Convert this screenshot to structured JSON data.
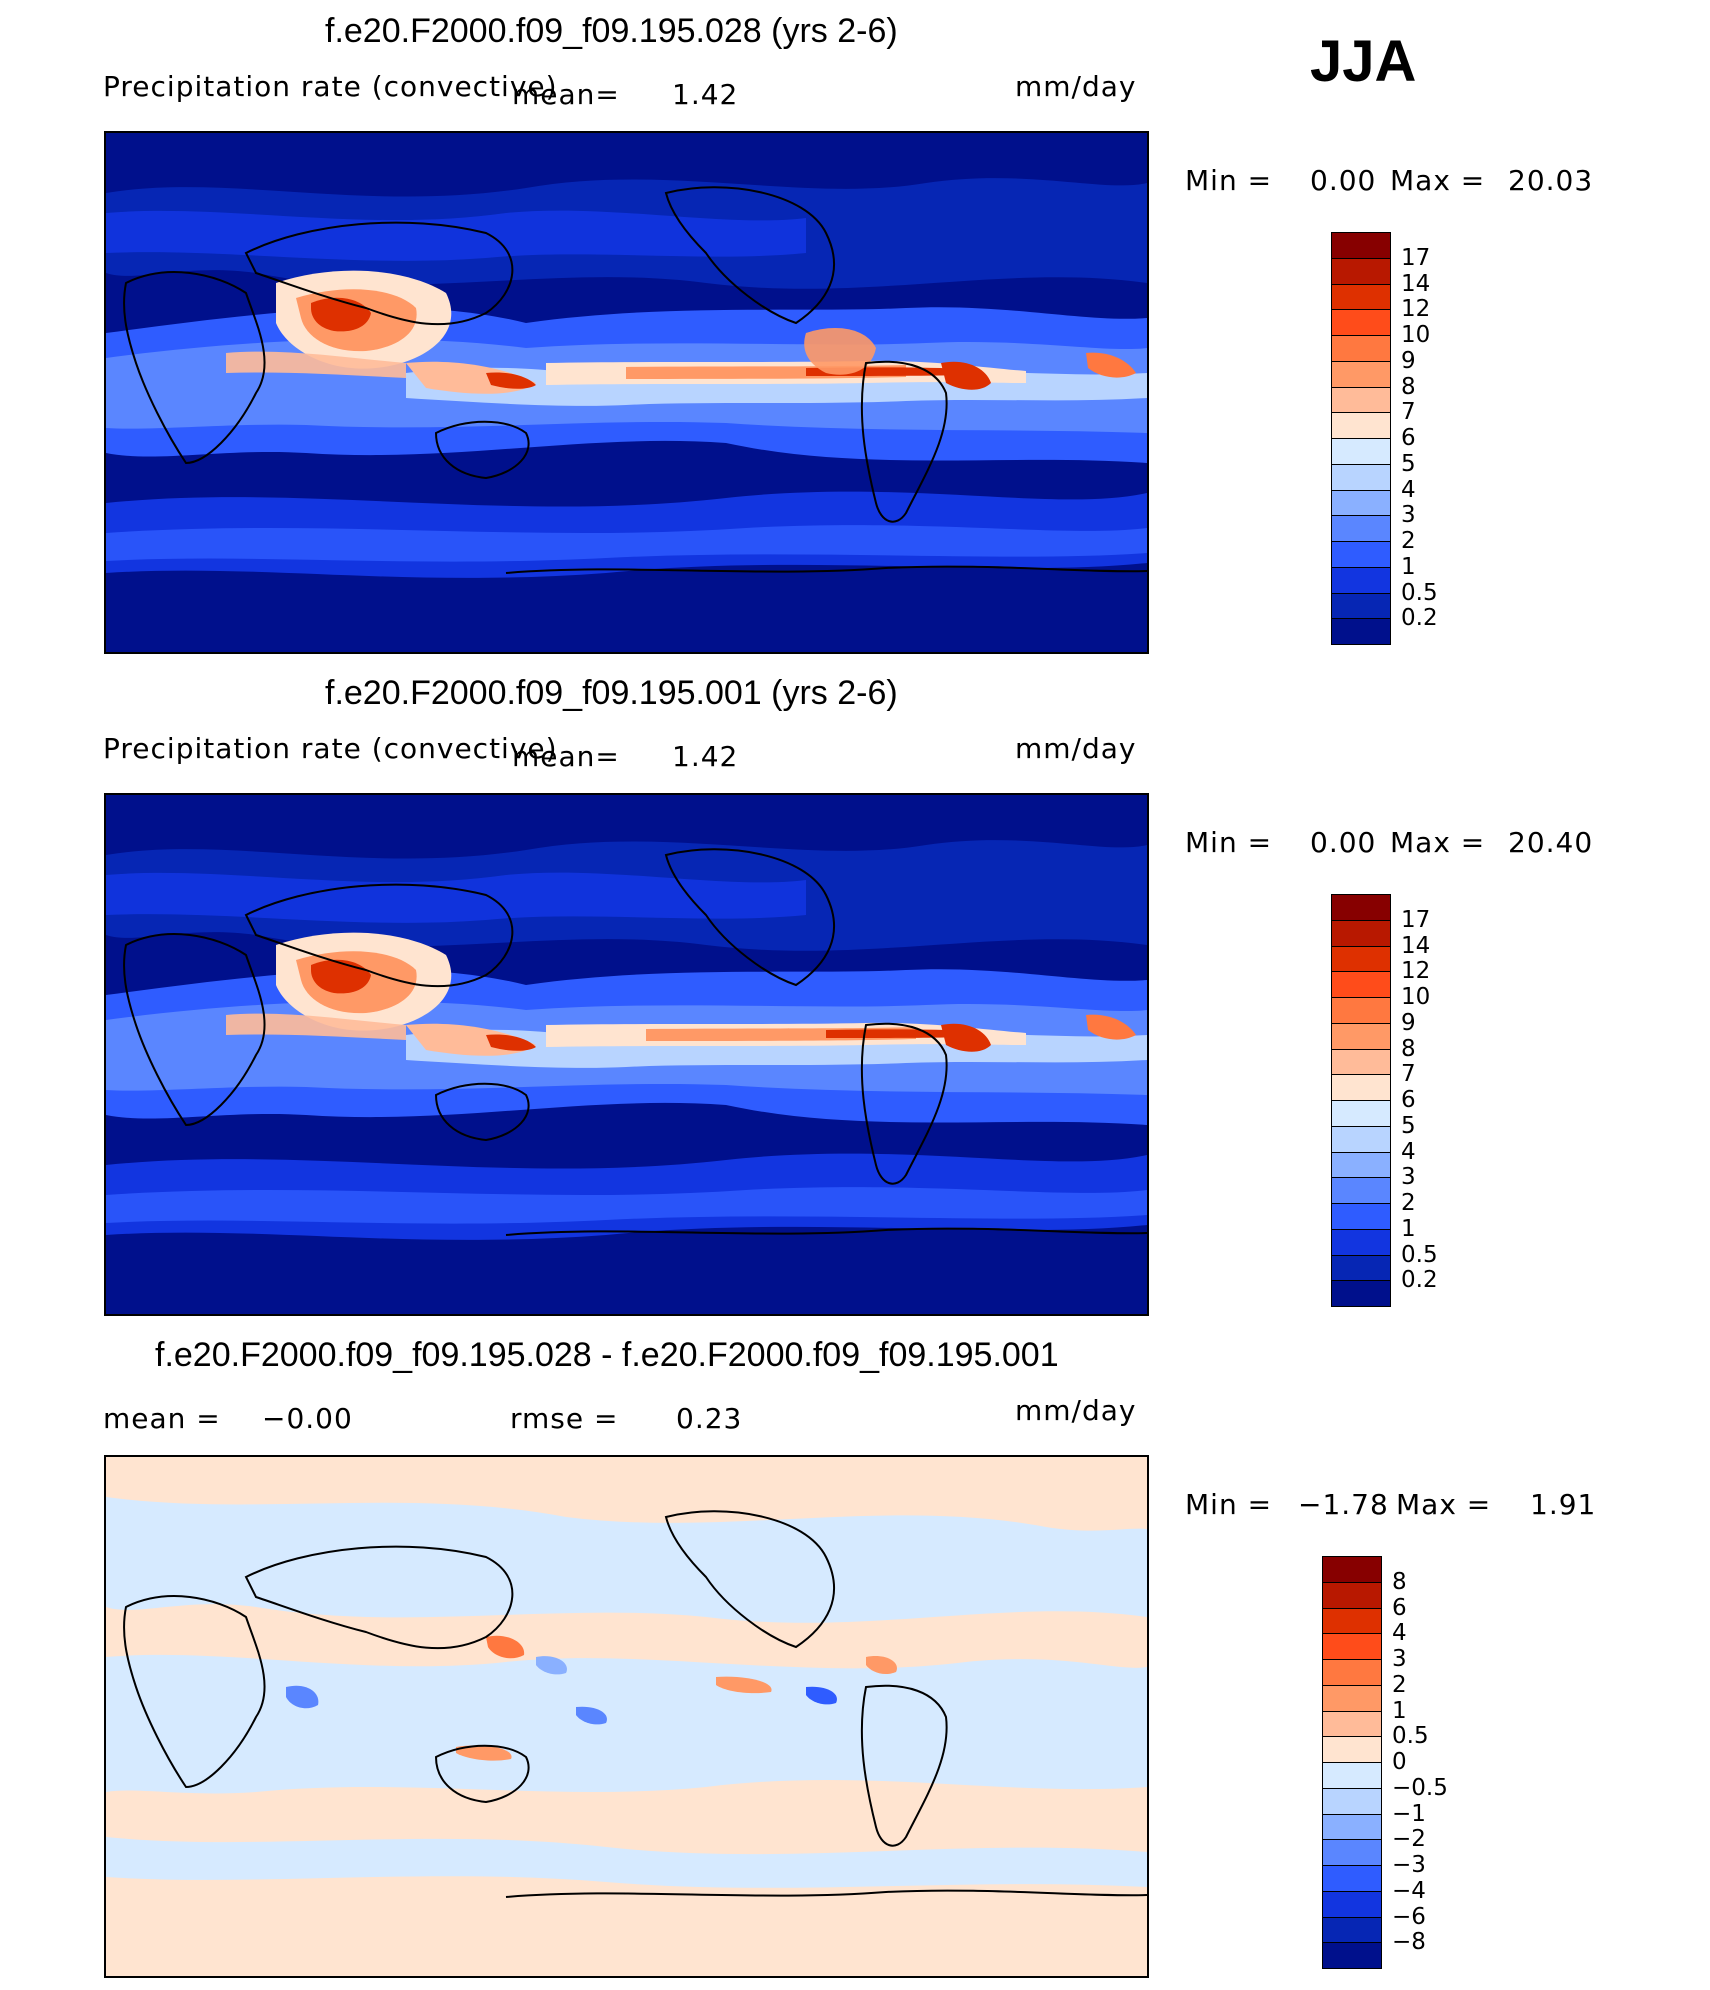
{
  "season": "JJA",
  "panels": [
    {
      "id": "top",
      "title": "f.e20.F2000.f09_f09.195.028 (yrs 2-6)",
      "variable": "Precipitation rate (convective)",
      "mean_label": "mean=",
      "mean_value": "1.42",
      "units": "mm/day",
      "min_label": "Min =",
      "min_value": "0.00",
      "max_label": "Max =",
      "max_value": "20.03",
      "colorbar": {
        "levels": [
          "17",
          "14",
          "12",
          "10",
          "9",
          "8",
          "7",
          "6",
          "5",
          "4",
          "3",
          "2",
          "1",
          "0.5",
          "0.2"
        ],
        "colors": [
          "#870000",
          "#b81800",
          "#de3000",
          "#ff4c1a",
          "#ff7840",
          "#ff9966",
          "#ffbb99",
          "#ffe4d0",
          "#d6eaff",
          "#b8d4ff",
          "#8ab0ff",
          "#5a86ff",
          "#2f5cff",
          "#1235e0",
          "#0626b4",
          "#00108c"
        ]
      }
    },
    {
      "id": "middle",
      "title": "f.e20.F2000.f09_f09.195.001 (yrs 2-6)",
      "variable": "Precipitation rate (convective)",
      "mean_label": "mean=",
      "mean_value": "1.42",
      "units": "mm/day",
      "min_label": "Min =",
      "min_value": "0.00",
      "max_label": "Max =",
      "max_value": "20.40",
      "colorbar": {
        "levels": [
          "17",
          "14",
          "12",
          "10",
          "9",
          "8",
          "7",
          "6",
          "5",
          "4",
          "3",
          "2",
          "1",
          "0.5",
          "0.2"
        ],
        "colors": [
          "#870000",
          "#b81800",
          "#de3000",
          "#ff4c1a",
          "#ff7840",
          "#ff9966",
          "#ffbb99",
          "#ffe4d0",
          "#d6eaff",
          "#b8d4ff",
          "#8ab0ff",
          "#5a86ff",
          "#2f5cff",
          "#1235e0",
          "#0626b4",
          "#00108c"
        ]
      }
    },
    {
      "id": "bottom",
      "title": "f.e20.F2000.f09_f09.195.028 - f.e20.F2000.f09_f09.195.001",
      "mean_label": "mean =",
      "mean_value": "−0.00",
      "rmse_label": "rmse =",
      "rmse_value": "0.23",
      "units": "mm/day",
      "min_label": "Min =",
      "min_value": "−1.78",
      "max_label": "Max =",
      "max_value": "1.91",
      "colorbar": {
        "levels": [
          "8",
          "6",
          "4",
          "3",
          "2",
          "1",
          "0.5",
          "0",
          "−0.5",
          "−1",
          "−2",
          "−3",
          "−4",
          "−6",
          "−8"
        ],
        "colors": [
          "#870000",
          "#b81800",
          "#de3000",
          "#ff4c1a",
          "#ff7840",
          "#ff9966",
          "#ffbb99",
          "#ffe4d0",
          "#d6eaff",
          "#b8d4ff",
          "#8ab0ff",
          "#5a86ff",
          "#2f5cff",
          "#1235e0",
          "#0626b4",
          "#00108c"
        ]
      }
    }
  ],
  "chart_data": [
    {
      "type": "heatmap",
      "title": "f.e20.F2000.f09_f09.195.028 (yrs 2-6)",
      "variable": "Precipitation rate (convective)",
      "units": "mm/day",
      "mean": 1.42,
      "min": 0.0,
      "max": 20.03,
      "contour_levels": [
        0.2,
        0.5,
        1,
        2,
        3,
        4,
        5,
        6,
        7,
        8,
        9,
        10,
        12,
        14,
        17
      ],
      "colormap": "blue-white-red",
      "projection": "global cylindrical, Pacific-centered"
    },
    {
      "type": "heatmap",
      "title": "f.e20.F2000.f09_f09.195.001 (yrs 2-6)",
      "variable": "Precipitation rate (convective)",
      "units": "mm/day",
      "mean": 1.42,
      "min": 0.0,
      "max": 20.4,
      "contour_levels": [
        0.2,
        0.5,
        1,
        2,
        3,
        4,
        5,
        6,
        7,
        8,
        9,
        10,
        12,
        14,
        17
      ],
      "colormap": "blue-white-red",
      "projection": "global cylindrical, Pacific-centered"
    },
    {
      "type": "heatmap",
      "title": "f.e20.F2000.f09_f09.195.028 - f.e20.F2000.f09_f09.195.001",
      "units": "mm/day",
      "mean": -0.0,
      "rmse": 0.23,
      "min": -1.78,
      "max": 1.91,
      "contour_levels": [
        -8,
        -6,
        -4,
        -3,
        -2,
        -1,
        -0.5,
        0,
        0.5,
        1,
        2,
        3,
        4,
        6,
        8
      ],
      "colormap": "blue-white-red",
      "projection": "global cylindrical, Pacific-centered"
    }
  ]
}
